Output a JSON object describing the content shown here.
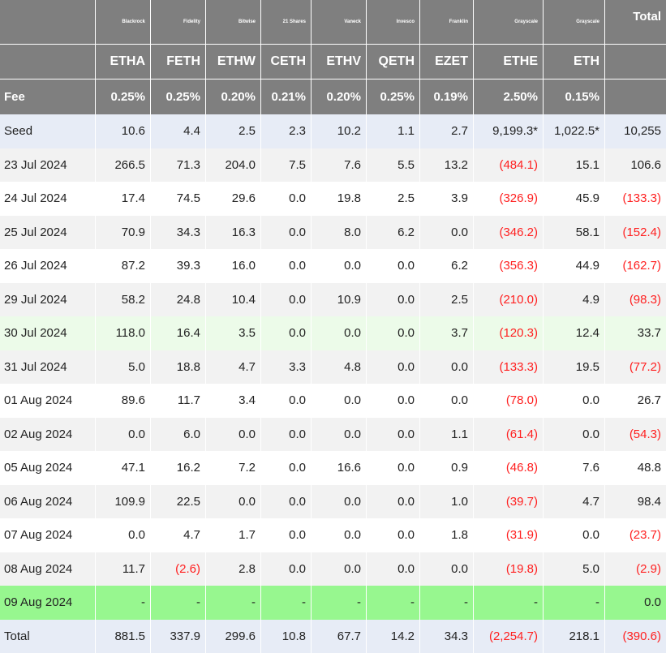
{
  "chart_data": {
    "type": "table",
    "header": {
      "issuers": [
        "Blackrock",
        "Fidelity",
        "Bitwise",
        "21 Shares",
        "Vaneck",
        "Invesco",
        "Franklin",
        "Grayscale",
        "Grayscale"
      ],
      "tickers": [
        "ETHA",
        "FETH",
        "ETHW",
        "CETH",
        "ETHV",
        "QETH",
        "EZET",
        "ETHE",
        "ETH"
      ],
      "fee_label": "Fee",
      "fees": [
        "0.25%",
        "0.25%",
        "0.20%",
        "0.21%",
        "0.20%",
        "0.25%",
        "0.19%",
        "2.50%",
        "0.15%"
      ],
      "total_label": "Total"
    },
    "rows": [
      {
        "label": "Seed",
        "cells": [
          "10.6",
          "4.4",
          "2.5",
          "2.3",
          "10.2",
          "1.1",
          "2.7",
          "9,199.3*",
          "1,022.5*",
          "10,255"
        ]
      },
      {
        "label": "23 Jul 2024",
        "cells": [
          "266.5",
          "71.3",
          "204.0",
          "7.5",
          "7.6",
          "5.5",
          "13.2",
          "(484.1)",
          "15.1",
          "106.6"
        ]
      },
      {
        "label": "24 Jul 2024",
        "cells": [
          "17.4",
          "74.5",
          "29.6",
          "0.0",
          "19.8",
          "2.5",
          "3.9",
          "(326.9)",
          "45.9",
          "(133.3)"
        ]
      },
      {
        "label": "25 Jul 2024",
        "cells": [
          "70.9",
          "34.3",
          "16.3",
          "0.0",
          "8.0",
          "6.2",
          "0.0",
          "(346.2)",
          "58.1",
          "(152.4)"
        ]
      },
      {
        "label": "26 Jul 2024",
        "cells": [
          "87.2",
          "39.3",
          "16.0",
          "0.0",
          "0.0",
          "0.0",
          "6.2",
          "(356.3)",
          "44.9",
          "(162.7)"
        ]
      },
      {
        "label": "29 Jul 2024",
        "cells": [
          "58.2",
          "24.8",
          "10.4",
          "0.0",
          "10.9",
          "0.0",
          "2.5",
          "(210.0)",
          "4.9",
          "(98.3)"
        ]
      },
      {
        "label": "30 Jul 2024",
        "cells": [
          "118.0",
          "16.4",
          "3.5",
          "0.0",
          "0.0",
          "0.0",
          "3.7",
          "(120.3)",
          "12.4",
          "33.7"
        ]
      },
      {
        "label": "31 Jul 2024",
        "cells": [
          "5.0",
          "18.8",
          "4.7",
          "3.3",
          "4.8",
          "0.0",
          "0.0",
          "(133.3)",
          "19.5",
          "(77.2)"
        ]
      },
      {
        "label": "01 Aug 2024",
        "cells": [
          "89.6",
          "11.7",
          "3.4",
          "0.0",
          "0.0",
          "0.0",
          "0.0",
          "(78.0)",
          "0.0",
          "26.7"
        ]
      },
      {
        "label": "02 Aug 2024",
        "cells": [
          "0.0",
          "6.0",
          "0.0",
          "0.0",
          "0.0",
          "0.0",
          "1.1",
          "(61.4)",
          "0.0",
          "(54.3)"
        ]
      },
      {
        "label": "05 Aug 2024",
        "cells": [
          "47.1",
          "16.2",
          "7.2",
          "0.0",
          "16.6",
          "0.0",
          "0.9",
          "(46.8)",
          "7.6",
          "48.8"
        ]
      },
      {
        "label": "06 Aug 2024",
        "cells": [
          "109.9",
          "22.5",
          "0.0",
          "0.0",
          "0.0",
          "0.0",
          "1.0",
          "(39.7)",
          "4.7",
          "98.4"
        ]
      },
      {
        "label": "07 Aug 2024",
        "cells": [
          "0.0",
          "4.7",
          "1.7",
          "0.0",
          "0.0",
          "0.0",
          "1.8",
          "(31.9)",
          "0.0",
          "(23.7)"
        ]
      },
      {
        "label": "08 Aug 2024",
        "cells": [
          "11.7",
          "(2.6)",
          "2.8",
          "0.0",
          "0.0",
          "0.0",
          "0.0",
          "(19.8)",
          "5.0",
          "(2.9)"
        ]
      },
      {
        "label": "09 Aug 2024",
        "cells": [
          "-",
          "-",
          "-",
          "-",
          "-",
          "-",
          "-",
          "-",
          "-",
          "0.0"
        ]
      },
      {
        "label": "Total",
        "cells": [
          "881.5",
          "337.9",
          "299.6",
          "10.8",
          "67.7",
          "14.2",
          "34.3",
          "(2,254.7)",
          "218.1",
          "(390.6)"
        ]
      }
    ],
    "row_highlights": {
      "30 Jul 2024": "light-green",
      "09 Aug 2024": "green"
    },
    "colors": {
      "header_bg": "#7f7f7f",
      "negative": "#ff2020",
      "seed_total_bg": "#e7ecf6",
      "stripe": "#f2f2f2",
      "highlight_light": "#ecfbe9",
      "highlight_strong": "#97f78f"
    }
  }
}
